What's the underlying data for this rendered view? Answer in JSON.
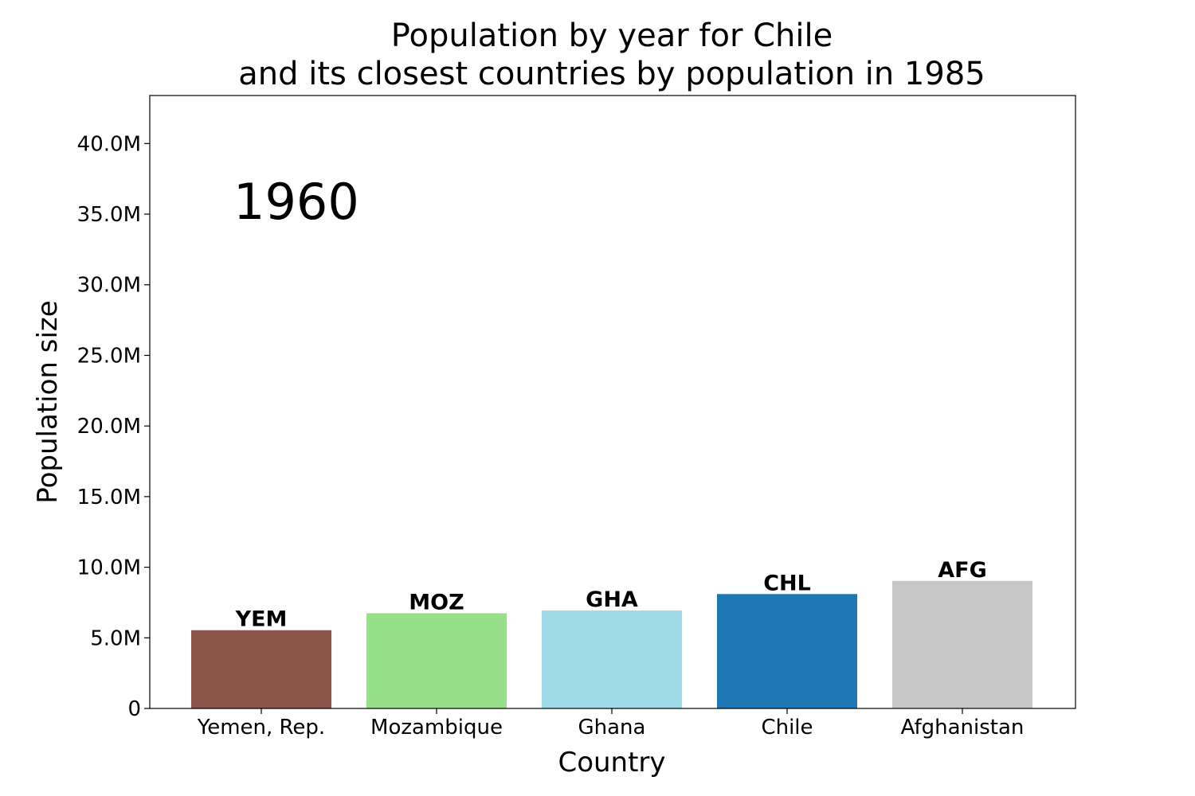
{
  "chart_data": {
    "type": "bar",
    "title_line1": "Population by year for Chile",
    "title_line2": "and its closest countries by population in 1985",
    "xlabel": "Country",
    "ylabel": "Population size",
    "year_label": "1960",
    "categories": [
      "Yemen, Rep.",
      "Mozambique",
      "Ghana",
      "Chile",
      "Afghanistan"
    ],
    "codes": [
      "YEM",
      "MOZ",
      "GHA",
      "CHL",
      "AFG"
    ],
    "values": [
      5540000,
      6740000,
      6940000,
      8100000,
      9030000
    ],
    "colors": [
      "#8c564b",
      "#98df8a",
      "#9edae5",
      "#1f77b4",
      "#c7c7c7"
    ],
    "ylim": [
      0,
      43400000
    ],
    "yticks": [
      0,
      5000000,
      10000000,
      15000000,
      20000000,
      25000000,
      30000000,
      35000000,
      40000000
    ],
    "ytick_labels": [
      "0",
      "5.0M",
      "10.0M",
      "15.0M",
      "20.0M",
      "25.0M",
      "30.0M",
      "35.0M",
      "40.0M"
    ],
    "grid": false,
    "legend": false
  }
}
